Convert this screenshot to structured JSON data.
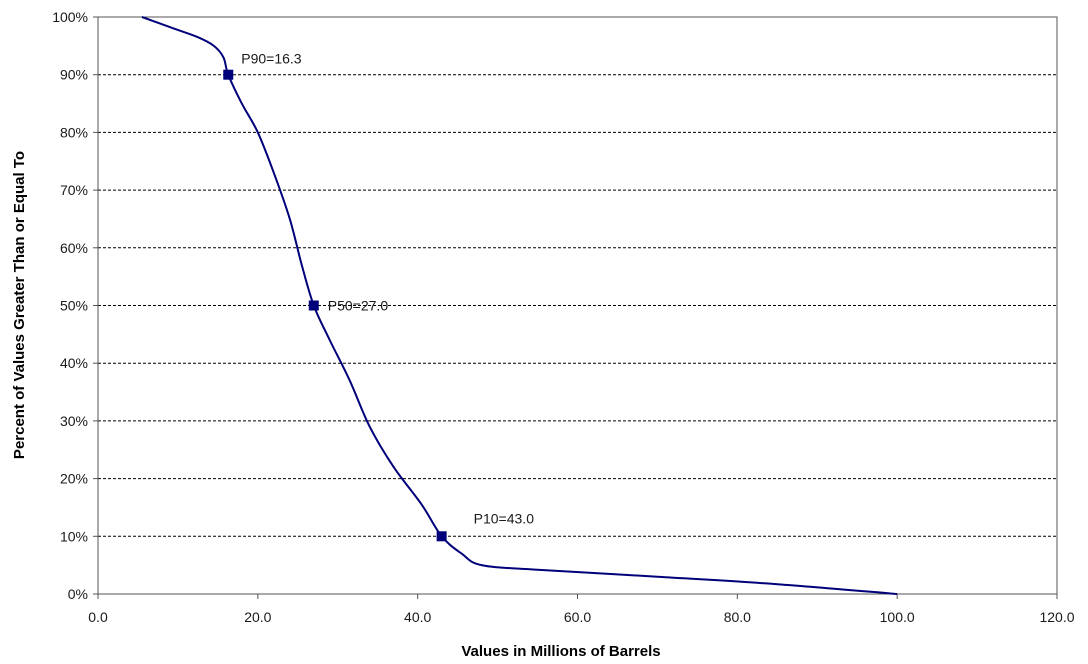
{
  "chart_data": {
    "type": "line",
    "xlabel": "Values in Millions  of Barrels",
    "ylabel": "Percent of Values Greater Than or Equal To",
    "xlim": [
      0,
      120
    ],
    "ylim": [
      0,
      100
    ],
    "x_ticks": [
      0,
      20,
      40,
      60,
      80,
      100,
      120
    ],
    "x_tick_labels": [
      "0.0",
      "20.0",
      "40.0",
      "60.0",
      "80.0",
      "100.0",
      "120.0"
    ],
    "y_ticks": [
      0,
      10,
      20,
      30,
      40,
      50,
      60,
      70,
      80,
      90,
      100
    ],
    "y_tick_labels": [
      "0%",
      "10%",
      "20%",
      "30%",
      "40%",
      "50%",
      "60%",
      "70%",
      "80%",
      "90%",
      "100%"
    ],
    "grid": "horizontal-dashed",
    "line_color": "#00007a",
    "marker_color": "#00007a",
    "series": [
      {
        "x": [
          5.5,
          9.5,
          12.5,
          14.5,
          15.7,
          16.3,
          18.0,
          20.0,
          22.0,
          24.0,
          25.5,
          27.0,
          29.0,
          31.5,
          34.0,
          37.0,
          40.5,
          43.0,
          45.5,
          48.0,
          55.0,
          70.0,
          85.0,
          100.0
        ],
        "y": [
          100,
          98,
          96.5,
          95,
          93,
          90,
          85,
          80,
          73,
          65,
          57,
          50,
          44,
          37,
          29,
          22,
          15.5,
          10,
          7,
          5,
          4.2,
          3,
          1.7,
          0
        ]
      }
    ],
    "points": [
      {
        "x": 16.3,
        "y": 90,
        "label": "P90=16.3"
      },
      {
        "x": 27.0,
        "y": 50,
        "label": "P50=27.0"
      },
      {
        "x": 43.0,
        "y": 10,
        "label": "P10=43.0"
      }
    ]
  }
}
